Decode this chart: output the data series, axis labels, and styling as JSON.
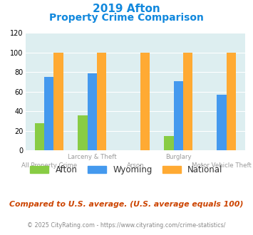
{
  "title_line1": "2019 Afton",
  "title_line2": "Property Crime Comparison",
  "categories": [
    "All Property Crime",
    "Larceny & Theft",
    "Arson",
    "Burglary",
    "Motor Vehicle Theft"
  ],
  "cat_labels_line1": [
    "",
    "Larceny & Theft",
    "",
    "Burglary",
    ""
  ],
  "cat_labels_line2": [
    "All Property Crime",
    "",
    "Arson",
    "",
    "Motor Vehicle Theft"
  ],
  "afton": [
    28,
    36,
    0,
    15,
    0
  ],
  "wyoming": [
    75,
    79,
    0,
    71,
    57
  ],
  "national": [
    100,
    100,
    100,
    100,
    100
  ],
  "color_afton": "#88cc44",
  "color_wyoming": "#4499ee",
  "color_national": "#ffaa33",
  "ylabel_max": 120,
  "yticks": [
    0,
    20,
    40,
    60,
    80,
    100,
    120
  ],
  "bg_color": "#ddeef0",
  "footer_text": "Compared to U.S. average. (U.S. average equals 100)",
  "credit_text": "© 2025 CityRating.com - https://www.cityrating.com/crime-statistics/",
  "title_color": "#1188dd",
  "footer_color": "#cc4400",
  "credit_color": "#888888",
  "legend_labels": [
    "Afton",
    "Wyoming",
    "National"
  ],
  "bar_width": 0.22
}
